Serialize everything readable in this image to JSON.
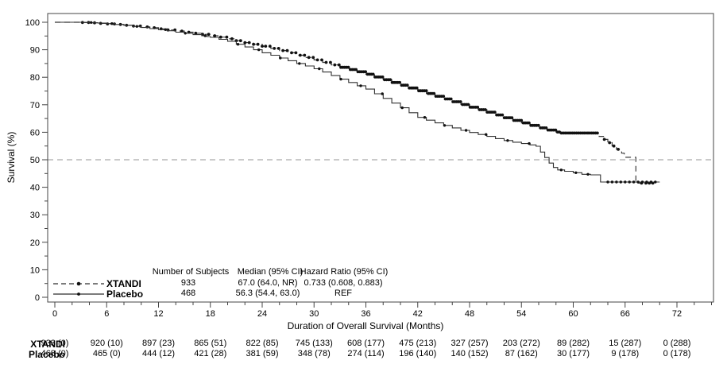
{
  "chart_data": {
    "type": "line",
    "subtype": "kaplan-meier",
    "title": "",
    "xlabel": "Duration of Overall Survival (Months)",
    "ylabel": "Survival (%)",
    "xlim": [
      -0.8,
      76.2
    ],
    "ylim": [
      -1.7,
      103
    ],
    "x_major_ticks": [
      0,
      6,
      12,
      18,
      24,
      30,
      36,
      42,
      48,
      54,
      60,
      66,
      72
    ],
    "x_minor_step": 2,
    "y_major_ticks": [
      0,
      10,
      20,
      30,
      40,
      50,
      60,
      70,
      80,
      90,
      100
    ],
    "y_minor_step": 5,
    "reference_line_y": 50,
    "grid": "off",
    "legend_position": "bottom-left-inside",
    "series": [
      {
        "name": "XTANDI",
        "line_style": "dashed",
        "color": "#3c3c3c",
        "points": [
          [
            0,
            100
          ],
          [
            2.2,
            100
          ],
          [
            3,
            99.9
          ],
          [
            4,
            99.8
          ],
          [
            5,
            99.6
          ],
          [
            6,
            99.4
          ],
          [
            7,
            99.2
          ],
          [
            8,
            98.9
          ],
          [
            9,
            98.6
          ],
          [
            10,
            98.3
          ],
          [
            11,
            98.0
          ],
          [
            12,
            97.6
          ],
          [
            13,
            97.2
          ],
          [
            14,
            96.8
          ],
          [
            15,
            96.4
          ],
          [
            16,
            96.0
          ],
          [
            17,
            95.6
          ],
          [
            18,
            95.1
          ],
          [
            19,
            94.6
          ],
          [
            20,
            94.0
          ],
          [
            21,
            93.3
          ],
          [
            22,
            92.6
          ],
          [
            23,
            92.0
          ],
          [
            24,
            91.3
          ],
          [
            25,
            90.5
          ],
          [
            26,
            89.7
          ],
          [
            27,
            88.9
          ],
          [
            28,
            88.0
          ],
          [
            29,
            87.2
          ],
          [
            30,
            86.3
          ],
          [
            31,
            85.4
          ],
          [
            32,
            84.5
          ],
          [
            33,
            83.6
          ],
          [
            34,
            82.8
          ],
          [
            35,
            82.0
          ],
          [
            36,
            81.1
          ],
          [
            37,
            80.1
          ],
          [
            38,
            79.1
          ],
          [
            39,
            78.1
          ],
          [
            40,
            77.1
          ],
          [
            41,
            76.1
          ],
          [
            42,
            75.1
          ],
          [
            43,
            74.1
          ],
          [
            44,
            73.1
          ],
          [
            45,
            72.1
          ],
          [
            46,
            71.1
          ],
          [
            47,
            70.1
          ],
          [
            48,
            69.1
          ],
          [
            49,
            68.2
          ],
          [
            50,
            67.3
          ],
          [
            51,
            66.3
          ],
          [
            52,
            65.3
          ],
          [
            53,
            64.3
          ],
          [
            54,
            63.4
          ],
          [
            55,
            62.5
          ],
          [
            56,
            61.6
          ],
          [
            57,
            60.8
          ],
          [
            58,
            60.1
          ],
          [
            58.6,
            59.7
          ],
          [
            62.6,
            59.7
          ],
          [
            63.0,
            58.5
          ],
          [
            63.5,
            57.4
          ],
          [
            64.0,
            56.2
          ],
          [
            64.5,
            55.0
          ],
          [
            65.0,
            53.8
          ],
          [
            65.6,
            52.4
          ],
          [
            65.9,
            50.9
          ],
          [
            67.2,
            50.9
          ],
          [
            67.25,
            41.5
          ],
          [
            69.3,
            41.5
          ]
        ],
        "censor_marks": [
          3.2,
          3.9,
          4.6,
          5.3,
          6.1,
          6.9,
          7.6,
          8.3,
          9.1,
          9.9,
          10.7,
          11.5,
          12.3,
          13.1,
          13.9,
          14.7,
          15.5,
          16.3,
          17.1,
          17.8,
          18.5,
          19.2,
          19.9,
          20.5,
          21,
          21.5,
          22,
          22.5,
          23,
          23.5,
          24,
          24.4,
          24.9,
          25.4,
          25.9,
          26.4,
          26.9,
          27.4,
          27.9,
          28.4,
          28.9,
          29.4,
          29.9,
          30.4,
          30.9,
          31.4,
          31.9,
          32.4,
          32.9,
          63.6,
          64.2,
          64.7,
          65.2,
          67.9,
          68.4,
          68.8,
          69.2
        ],
        "censor_bands": [
          {
            "from": 33.1,
            "to": 63.0,
            "step": 0.22
          }
        ]
      },
      {
        "name": "Placebo",
        "line_style": "solid",
        "color": "#303030",
        "points": [
          [
            0,
            100
          ],
          [
            2.5,
            100
          ],
          [
            3.5,
            99.9
          ],
          [
            5,
            99.7
          ],
          [
            6,
            99.5
          ],
          [
            7,
            99.2
          ],
          [
            8,
            98.9
          ],
          [
            9,
            98.5
          ],
          [
            10,
            98.1
          ],
          [
            11,
            97.7
          ],
          [
            12,
            97.3
          ],
          [
            13,
            96.9
          ],
          [
            14,
            96.4
          ],
          [
            15,
            96.0
          ],
          [
            16,
            95.5
          ],
          [
            17,
            95.1
          ],
          [
            17.6,
            94.8
          ],
          [
            18,
            94.5
          ],
          [
            19,
            93.8
          ],
          [
            20,
            93.1
          ],
          [
            21,
            92.0
          ],
          [
            22,
            91.0
          ],
          [
            23,
            90.0
          ],
          [
            24,
            88.9
          ],
          [
            25,
            88.0
          ],
          [
            26,
            87.0
          ],
          [
            27,
            86.0
          ],
          [
            28,
            85.0
          ],
          [
            29,
            84.1
          ],
          [
            30,
            83.1
          ],
          [
            31,
            81.9
          ],
          [
            32,
            80.6
          ],
          [
            33,
            79.3
          ],
          [
            34,
            78.1
          ],
          [
            35,
            76.9
          ],
          [
            36,
            75.7
          ],
          [
            37,
            74.0
          ],
          [
            38,
            72.3
          ],
          [
            39,
            70.6
          ],
          [
            40,
            68.9
          ],
          [
            41,
            67.1
          ],
          [
            42,
            65.4
          ],
          [
            43,
            64.4
          ],
          [
            44,
            63.4
          ],
          [
            45,
            62.5
          ],
          [
            46,
            61.6
          ],
          [
            47,
            60.7
          ],
          [
            48,
            59.9
          ],
          [
            49,
            59.2
          ],
          [
            50,
            58.5
          ],
          [
            51,
            57.7
          ],
          [
            52,
            57.0
          ],
          [
            53,
            56.4
          ],
          [
            54,
            55.9
          ],
          [
            55,
            55.4
          ],
          [
            55.7,
            54.9
          ],
          [
            56.2,
            52.8
          ],
          [
            56.7,
            50.8
          ],
          [
            57.2,
            48.8
          ],
          [
            57.7,
            47.2
          ],
          [
            58.2,
            46.3
          ],
          [
            59,
            45.8
          ],
          [
            60,
            45.3
          ],
          [
            61,
            44.7
          ],
          [
            62,
            44.5
          ],
          [
            63.1,
            44.5
          ],
          [
            63.15,
            41.9
          ],
          [
            70,
            41.9
          ]
        ],
        "censor_marks": [
          4.2,
          6.6,
          9.5,
          12.8,
          15.1,
          17.4,
          21.2,
          23.6,
          26.1,
          28.3,
          30.6,
          33.1,
          35.4,
          37.9,
          40.2,
          42.8,
          45.1,
          47.6,
          49.9,
          52.4,
          54.9,
          58.6,
          60.3,
          61.7
        ],
        "censor_bands": [
          {
            "from": 64.0,
            "to": 69.7,
            "step": 0.5
          }
        ]
      }
    ],
    "legend": {
      "headers": [
        "Number of Subjects",
        "Median (95% CI)",
        "Hazard Ratio (95% CI)"
      ],
      "rows": [
        {
          "name": "XTANDI",
          "n": "933",
          "median": "67.0 (64.0, NR)",
          "hr": "0.733 (0.608, 0.883)"
        },
        {
          "name": "Placebo",
          "n": "468",
          "median": "56.3 (54.4, 63.0)",
          "hr": "REF"
        }
      ]
    },
    "risk_table": {
      "tick_months": [
        0,
        6,
        12,
        18,
        24,
        30,
        36,
        42,
        48,
        54,
        60,
        66,
        72
      ],
      "rows": [
        {
          "label": "XTANDI",
          "values": [
            "933 (0)",
            "920 (10)",
            "897 (23)",
            "865 (51)",
            "822 (85)",
            "745 (133)",
            "608 (177)",
            "475 (213)",
            "327 (257)",
            "203 (272)",
            "89 (282)",
            "15 (287)",
            "0 (288)"
          ]
        },
        {
          "label": "Placebo",
          "values": [
            "468 (0)",
            "465 (0)",
            "444 (12)",
            "421 (28)",
            "381 (59)",
            "348 (78)",
            "274 (114)",
            "196 (140)",
            "140 (152)",
            "87 (162)",
            "30 (177)",
            "9 (178)",
            "0 (178)"
          ]
        }
      ]
    },
    "colors": {
      "frame": "#444444",
      "refline": "#aaaaaa",
      "text": "#000000",
      "marker": "#111111"
    }
  }
}
